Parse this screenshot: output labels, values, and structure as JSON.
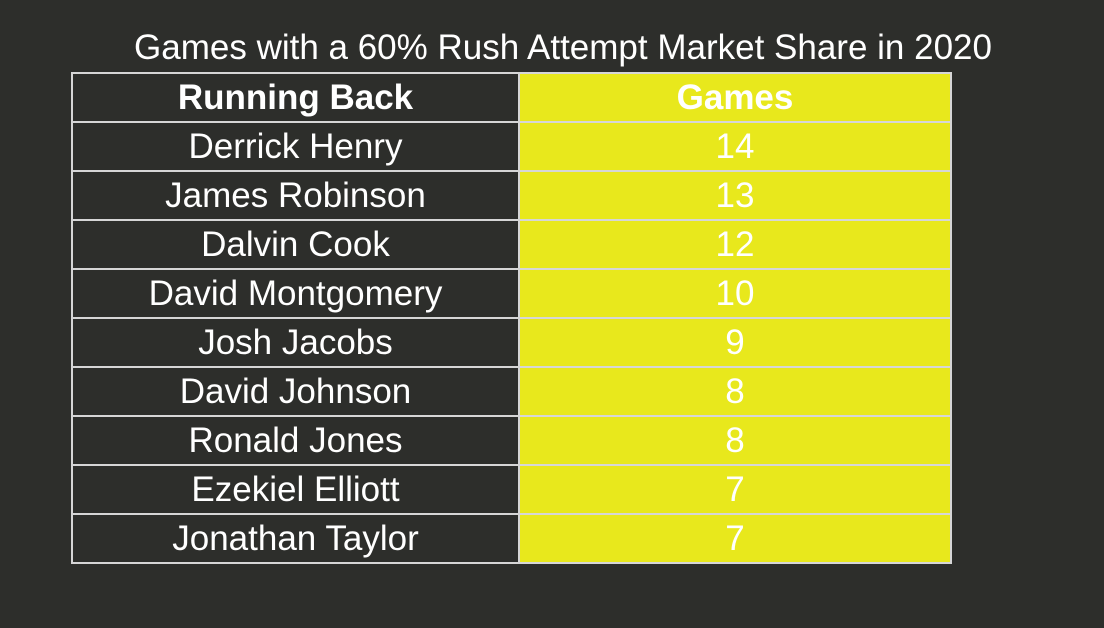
{
  "chart_data": {
    "type": "table",
    "title": "Games with a 60% Rush Attempt Market Share in 2020",
    "columns": [
      "Running Back",
      "Games"
    ],
    "rows": [
      {
        "running_back": "Derrick Henry",
        "games": 14
      },
      {
        "running_back": "James Robinson",
        "games": 13
      },
      {
        "running_back": "Dalvin Cook",
        "games": 12
      },
      {
        "running_back": "David Montgomery",
        "games": 10
      },
      {
        "running_back": "Josh Jacobs",
        "games": 9
      },
      {
        "running_back": "David Johnson",
        "games": 8
      },
      {
        "running_back": "Ronald Jones",
        "games": 8
      },
      {
        "running_back": "Ezekiel Elliott",
        "games": 7
      },
      {
        "running_back": "Jonathan Taylor",
        "games": 7
      }
    ],
    "colors": {
      "background": "#2d2e2b",
      "games_column": "#e8e81c",
      "text": "#ffffff",
      "border": "#d6d6d6"
    }
  }
}
